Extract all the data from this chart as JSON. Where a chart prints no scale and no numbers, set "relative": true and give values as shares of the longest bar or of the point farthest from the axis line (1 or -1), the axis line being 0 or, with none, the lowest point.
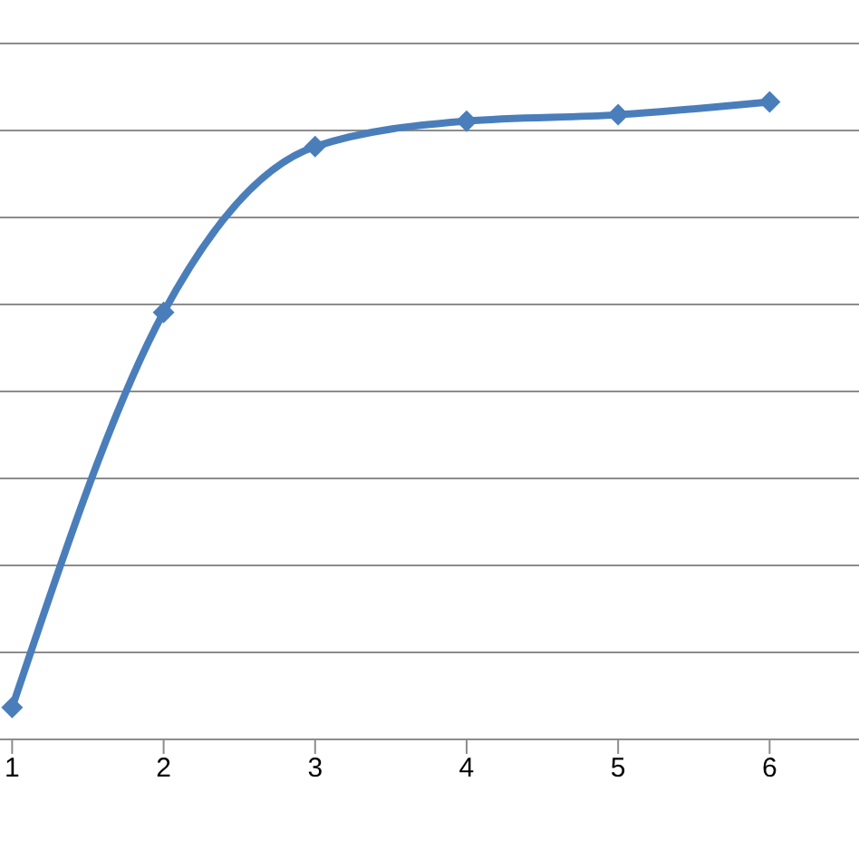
{
  "chart_data": {
    "type": "line",
    "relative": true,
    "x": [
      1,
      2,
      3,
      4,
      5,
      6
    ],
    "xlim": [
      0.92,
      6.59
    ],
    "xticks": [
      1,
      2,
      3,
      4,
      5,
      6
    ],
    "series": [
      {
        "color": "#4a7ebb",
        "values": [
          0.05,
          0.67,
          0.93,
          0.97,
          0.98,
          1.0
        ]
      }
    ],
    "grid": "y",
    "marker": "diamond",
    "line_style": "solid"
  }
}
